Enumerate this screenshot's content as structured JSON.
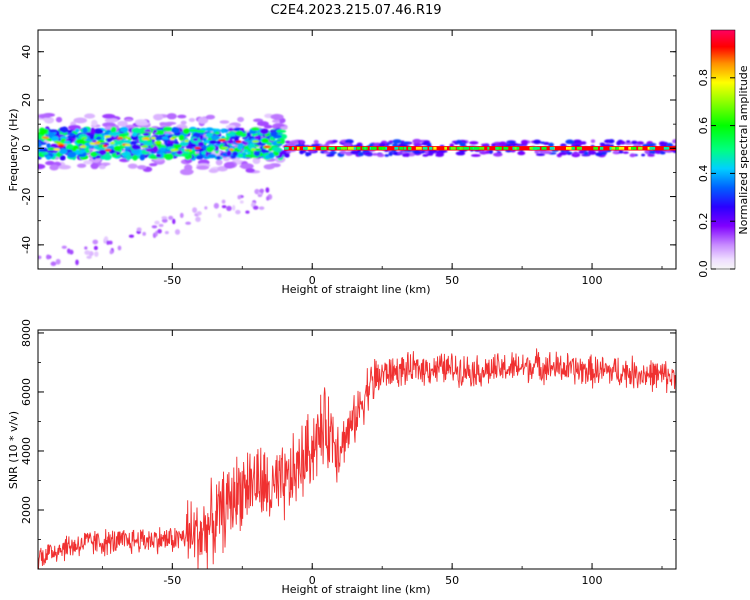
{
  "title": "C2E4.2023.215.07.46.R19",
  "chart_data": [
    {
      "type": "heatmap",
      "title": "C2E4.2023.215.07.46.R19",
      "xlabel": "Height of straight line (km)",
      "ylabel": "Frequency (Hz)",
      "xlim": [
        -98,
        130
      ],
      "ylim": [
        -50,
        49
      ],
      "xticks": [
        -50,
        0,
        50,
        100
      ],
      "yticks": [
        -40,
        -20,
        0,
        20,
        40
      ],
      "grid": false,
      "colorbar": {
        "label": "Normalized spectral amplitude",
        "range": [
          0.0,
          1.0
        ],
        "ticks": [
          0.0,
          0.2,
          0.4,
          0.6,
          0.8
        ],
        "tick_labels": [
          "0.0",
          "0.2",
          "0.4",
          "0.6",
          "0.8"
        ],
        "colormap": "rainbow"
      },
      "features": [
        {
          "description": "dense band",
          "x_range": [
            -98,
            -10
          ],
          "center_freq": 2,
          "half_width": 6
        },
        {
          "description": "narrow strong line",
          "x_range": [
            -10,
            130
          ],
          "center_freq": 0,
          "half_width": 3
        },
        {
          "description": "faint descending trail",
          "x_range": [
            -98,
            -15
          ],
          "freq_range": [
            -48,
            -20
          ]
        }
      ]
    },
    {
      "type": "line",
      "xlabel": "Height of straight line (km)",
      "ylabel": "SNR (10 * v/v)",
      "xlim": [
        -98,
        130
      ],
      "ylim": [
        0,
        8100
      ],
      "xticks": [
        -50,
        0,
        50,
        100
      ],
      "yticks": [
        2000,
        4000,
        6000,
        8000
      ],
      "grid": false,
      "color": "#f03030",
      "series": [
        {
          "x": [
            -98,
            -90,
            -80,
            -70,
            -60,
            -50,
            -40,
            -35,
            -30,
            -25,
            -20,
            -15,
            -10,
            -5,
            0,
            5,
            10,
            15,
            20,
            25,
            30,
            40,
            50,
            60,
            70,
            80,
            90,
            100,
            110,
            120,
            130
          ],
          "values": [
            400,
            700,
            900,
            900,
            1000,
            1000,
            1200,
            1600,
            2200,
            2800,
            3000,
            2600,
            2800,
            3400,
            4200,
            4800,
            4200,
            5000,
            6200,
            6600,
            6700,
            6800,
            6800,
            6700,
            6800,
            6900,
            6800,
            6700,
            6700,
            6600,
            6500
          ]
        }
      ]
    }
  ]
}
